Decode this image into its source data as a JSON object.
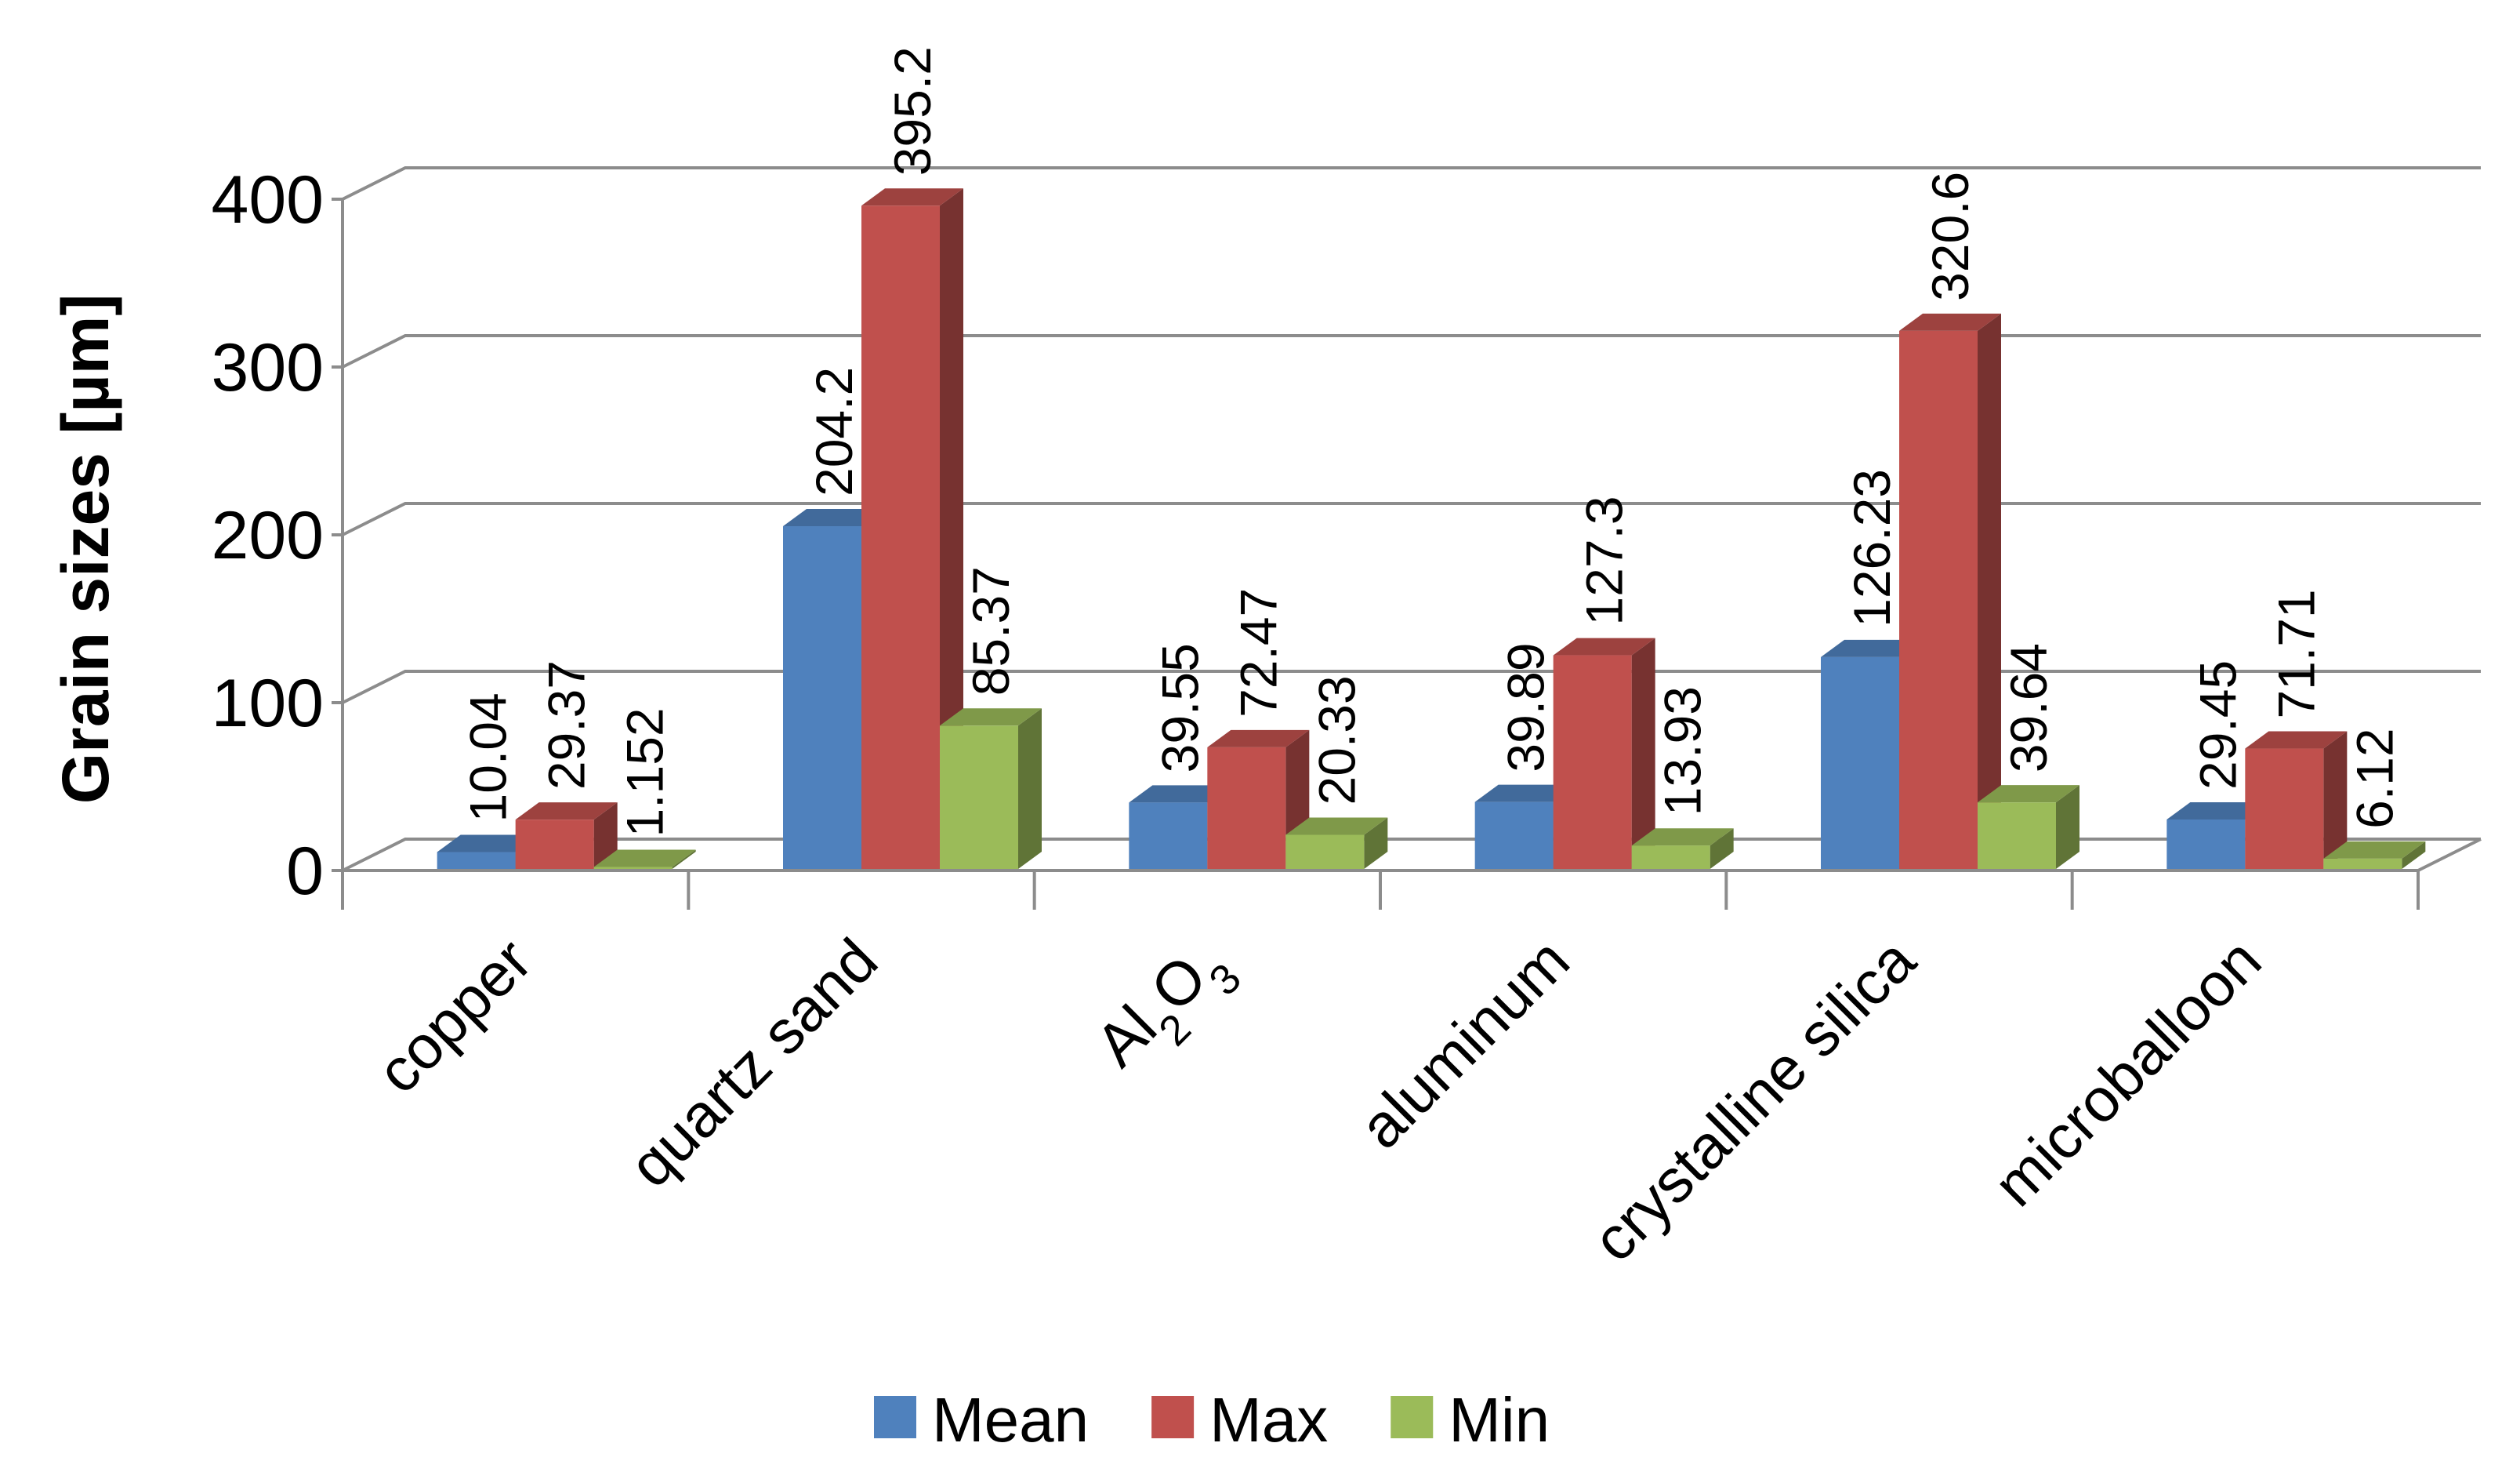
{
  "chart_data": {
    "type": "bar",
    "style": "3d-clustered-column",
    "title": "",
    "xlabel": "",
    "ylabel": "Grain sizes [µm]",
    "ylim": [
      0,
      400
    ],
    "yticks": [
      0,
      100,
      200,
      300,
      400
    ],
    "grid": true,
    "legend_position": "bottom",
    "categories": [
      "copper",
      "quartz sand",
      "Al2O3",
      "aluminum",
      "crystalline silica",
      "microballoon"
    ],
    "series": [
      {
        "name": "Mean",
        "color": "#4f81bd",
        "values": [
          10.04,
          204.2,
          39.55,
          39.89,
          126.23,
          29.45
        ],
        "labels": [
          "10.04",
          "204.2",
          "39.55",
          "39.89",
          "126.23",
          "29.45"
        ]
      },
      {
        "name": "Max",
        "color": "#c0504d",
        "values": [
          29.37,
          395.2,
          72.47,
          127.3,
          320.6,
          71.71
        ],
        "labels": [
          "29.37",
          "395.2",
          "72.47",
          "127.3",
          "320.6",
          "71.71"
        ]
      },
      {
        "name": "Min",
        "color": "#9bbb59",
        "values": [
          1.152,
          85.37,
          20.33,
          13.93,
          39.64,
          6.12
        ],
        "labels": [
          "1.152",
          "85.37",
          "20.33",
          "13.93",
          "39.64",
          "6.12"
        ]
      }
    ]
  }
}
